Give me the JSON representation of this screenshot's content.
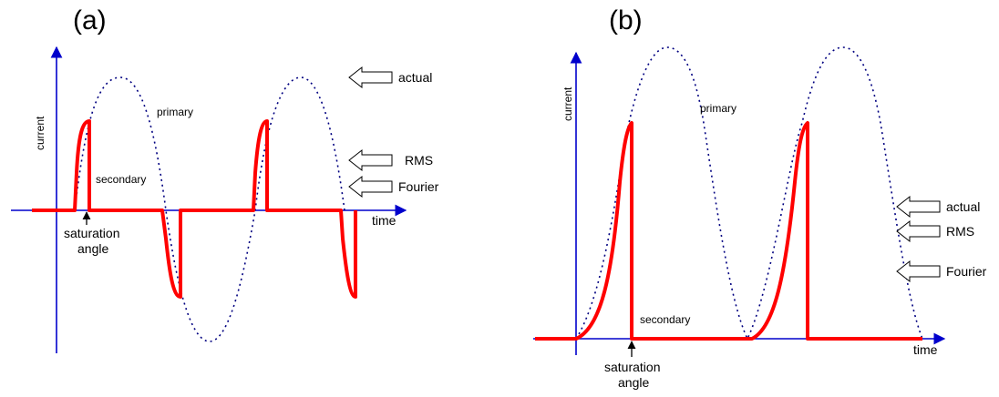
{
  "panel_a": {
    "label": "(a)",
    "y_axis_label": "current",
    "x_axis_label": "time",
    "primary_label": "primary",
    "secondary_label": "secondary",
    "saturation_label_line1": "saturation",
    "saturation_label_line2": "angle",
    "arrows": [
      {
        "label": "actual"
      },
      {
        "label": "RMS"
      },
      {
        "label": "Fourier"
      }
    ]
  },
  "panel_b": {
    "label": "(b)",
    "y_axis_label": "current",
    "x_axis_label": "time",
    "primary_label": "primary",
    "secondary_label": "secondary",
    "saturation_label_line1": "saturation",
    "saturation_label_line2": "angle",
    "arrows": [
      {
        "label": "actual"
      },
      {
        "label": "RMS"
      },
      {
        "label": "Fourier"
      }
    ]
  },
  "colors": {
    "axis": "#0000cc",
    "primary": "#000080",
    "secondary": "#ff0000"
  }
}
